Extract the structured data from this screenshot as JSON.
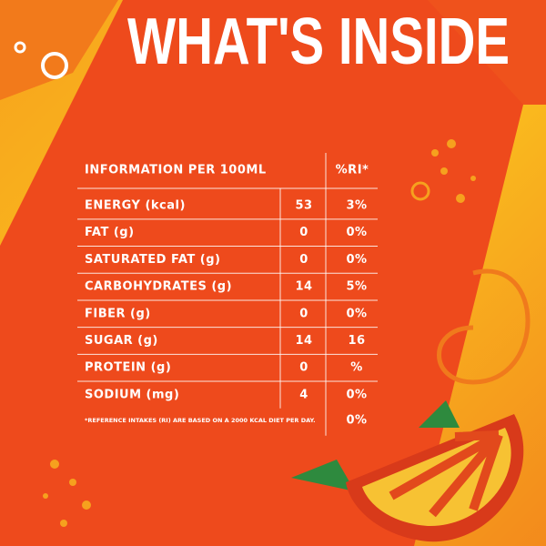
{
  "header": {
    "title": "WHAT'S INSIDE"
  },
  "table": {
    "columns": [
      "INFORMATION PER 100ML",
      "%RI*"
    ],
    "rows": [
      [
        "ENERGY (kcal)",
        "53",
        "3%"
      ],
      [
        "FAT (g)",
        "0",
        "0%"
      ],
      [
        "SATURATED FAT (g)",
        "0",
        "0%"
      ],
      [
        "CARBOHYDRATES (g)",
        "14",
        "5%"
      ],
      [
        "FIBER (g)",
        "0",
        "0%"
      ],
      [
        "SUGAR (g)",
        "14",
        "16"
      ],
      [
        "PROTEIN (g)",
        "0",
        "%"
      ],
      [
        "SODIUM (mg)",
        "4",
        "0%"
      ]
    ],
    "footnote": "*REFERENCE INTAKES (RI) ARE BASED ON A 2000 KCAL DIET PER DAY.",
    "footnote_value": "0%"
  }
}
